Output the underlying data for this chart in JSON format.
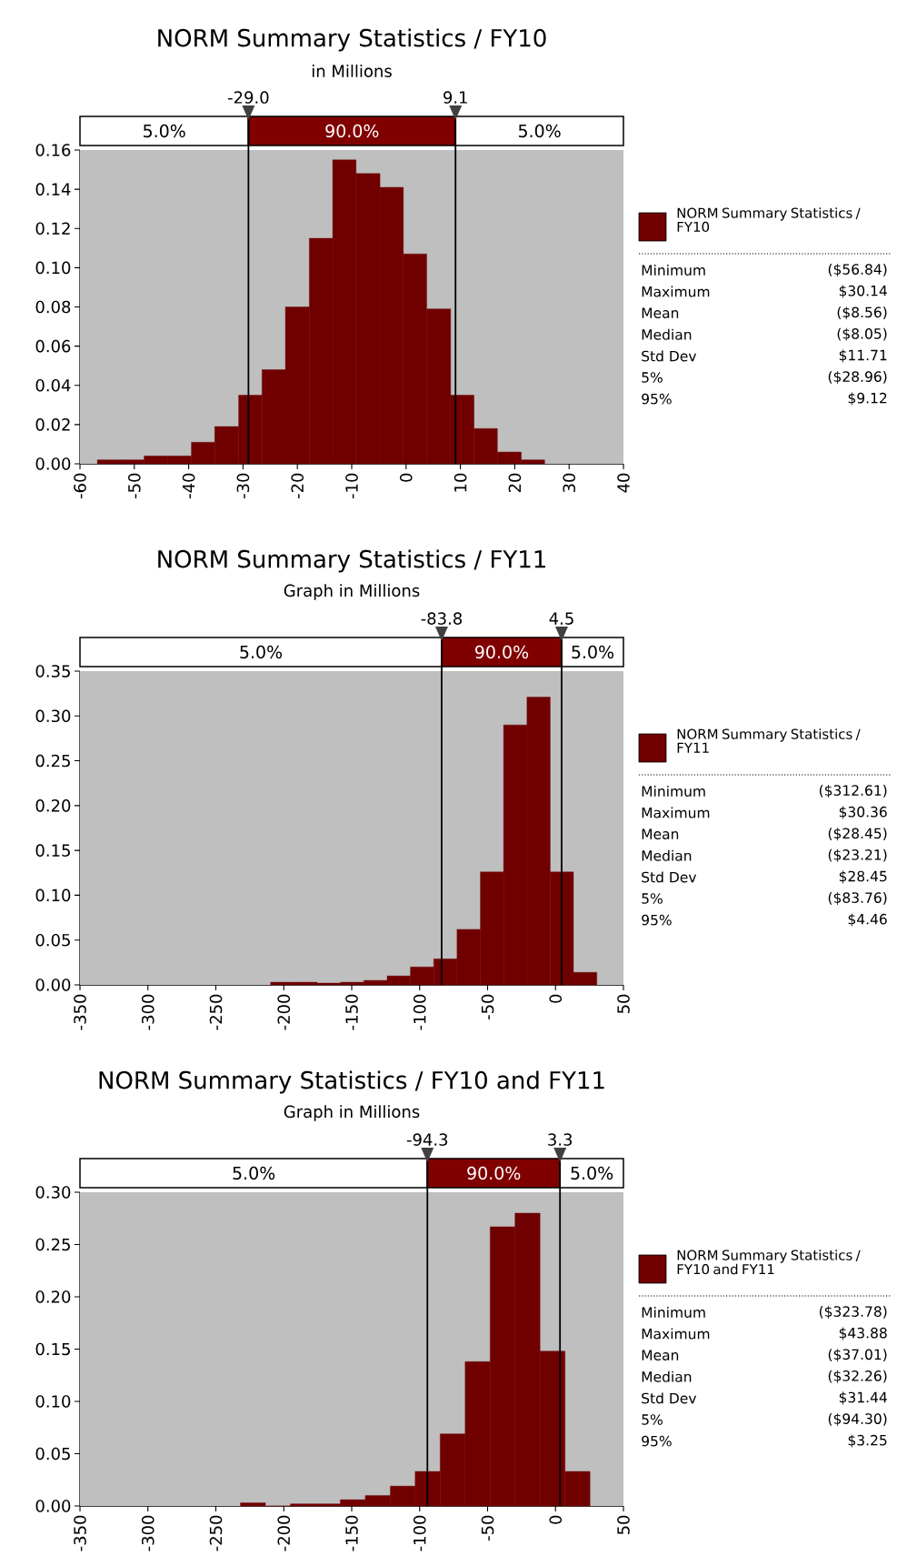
{
  "chart_data": [
    {
      "type": "histogram",
      "title": "NORM Summary Statistics / FY10",
      "subtitle": "in Millions",
      "bins": [
        -56.8,
        -52.5,
        -48.2,
        -43.8,
        -39.5,
        -35.2,
        -30.8,
        -26.5,
        -22.2,
        -17.8,
        -13.5,
        -9.2,
        -4.8,
        -0.5,
        3.8,
        8.2,
        12.5,
        16.8,
        21.2,
        25.5
      ],
      "series": [
        {
          "name": "NORM Summary Statistics / FY10",
          "color": "#700000",
          "values": [
            0.002,
            0.002,
            0.004,
            0.004,
            0.011,
            0.019,
            0.035,
            0.048,
            0.08,
            0.115,
            0.155,
            0.148,
            0.141,
            0.107,
            0.079,
            0.035,
            0.018,
            0.006,
            0.002
          ]
        }
      ],
      "xlim": [
        -60,
        40
      ],
      "xticks": [
        -60,
        -50,
        -40,
        -30,
        -20,
        -10,
        0,
        10,
        20,
        30,
        40
      ],
      "ylim": [
        0,
        0.16
      ],
      "yticks": [
        {
          "value": 0,
          "label": "0.00"
        },
        {
          "value": 0.02,
          "label": "0.02"
        },
        {
          "value": 0.04,
          "label": "0.04"
        },
        {
          "value": 0.06,
          "label": "0.06"
        },
        {
          "value": 0.08,
          "label": "0.08"
        },
        {
          "value": 0.1,
          "label": "0.10"
        },
        {
          "value": 0.12,
          "label": "0.12"
        },
        {
          "value": 0.14,
          "label": "0.14"
        },
        {
          "value": 0.16,
          "label": "0.16"
        }
      ],
      "ref_lines": [
        {
          "axis": "x",
          "value": -29.0,
          "label": "-29.0",
          "color": "#000000"
        },
        {
          "axis": "x",
          "value": 9.1,
          "label": "9.1",
          "color": "#000000"
        }
      ],
      "legend": "right",
      "annotations": [
        "5.0%",
        "90.0%",
        "5.0%",
        "Minimum",
        "($56.84)",
        "Maximum",
        "$30.14",
        "Mean",
        "($8.56)",
        "Median",
        "($8.05)",
        "Std Dev",
        "$11.71",
        "5%",
        "($28.96)",
        "95%",
        "$9.12"
      ]
    },
    {
      "type": "histogram",
      "title": "NORM Summary Statistics / FY11",
      "subtitle": "Graph in Millions",
      "bins": [
        -209.7,
        -192.5,
        -175.4,
        -158.2,
        -141.1,
        -123.9,
        -106.8,
        -89.6,
        -72.5,
        -55.3,
        -38.2,
        -21.0,
        -3.9,
        13.2,
        30.4
      ],
      "series": [
        {
          "name": "NORM Summary Statistics / FY11",
          "color": "#700000",
          "values": [
            0.003,
            0.003,
            0.002,
            0.003,
            0.005,
            0.01,
            0.02,
            0.029,
            0.062,
            0.126,
            0.29,
            0.321,
            0.126,
            0.014
          ]
        }
      ],
      "xlim": [
        -350,
        50
      ],
      "xticks": [
        -350,
        -300,
        -250,
        -200,
        -150,
        -100,
        -50,
        0,
        50
      ],
      "ylim": [
        0,
        0.35
      ],
      "yticks": [
        {
          "value": 0,
          "label": "0.00"
        },
        {
          "value": 0.05,
          "label": "0.05"
        },
        {
          "value": 0.1,
          "label": "0.10"
        },
        {
          "value": 0.15,
          "label": "0.15"
        },
        {
          "value": 0.2,
          "label": "0.20"
        },
        {
          "value": 0.25,
          "label": "0.25"
        },
        {
          "value": 0.3,
          "label": "0.30"
        },
        {
          "value": 0.35,
          "label": "0.35"
        }
      ],
      "ref_lines": [
        {
          "axis": "x",
          "value": -83.8,
          "label": "-83.8",
          "color": "#000000"
        },
        {
          "axis": "x",
          "value": 4.5,
          "label": "4.5",
          "color": "#000000"
        }
      ],
      "legend": "right",
      "annotations": [
        "5.0%",
        "90.0%",
        "5.0%",
        "Minimum",
        "($312.61)",
        "Maximum",
        "$30.36",
        "Mean",
        "($28.45)",
        "Median",
        "($23.21)",
        "Std Dev",
        "$28.45",
        "5%",
        "($83.76)",
        "95%",
        "$4.46"
      ]
    },
    {
      "type": "histogram",
      "title": "NORM Summary Statistics / FY10 and FY11",
      "subtitle": "Graph in Millions",
      "bins": [
        -231.9,
        -213.5,
        -195.1,
        -176.8,
        -158.4,
        -140.0,
        -121.6,
        -103.3,
        -84.9,
        -66.5,
        -48.1,
        -29.8,
        -11.4,
        7.0,
        25.4
      ],
      "series": [
        {
          "name": "NORM Summary Statistics / FY10 and FY11",
          "color": "#700000",
          "values": [
            0.003,
            0,
            0.002,
            0.002,
            0.006,
            0.01,
            0.019,
            0.033,
            0.069,
            0.138,
            0.267,
            0.28,
            0.148,
            0.033
          ]
        }
      ],
      "xlim": [
        -350,
        50
      ],
      "xticks": [
        -350,
        -300,
        -250,
        -200,
        -150,
        -100,
        -50,
        0,
        50
      ],
      "ylim": [
        0,
        0.3
      ],
      "yticks": [
        {
          "value": 0,
          "label": "0.00"
        },
        {
          "value": 0.05,
          "label": "0.05"
        },
        {
          "value": 0.1,
          "label": "0.10"
        },
        {
          "value": 0.15,
          "label": "0.15"
        },
        {
          "value": 0.2,
          "label": "0.20"
        },
        {
          "value": 0.25,
          "label": "0.25"
        },
        {
          "value": 0.3,
          "label": "0.30"
        }
      ],
      "ref_lines": [
        {
          "axis": "x",
          "value": -94.3,
          "label": "-94.3",
          "color": "#000000"
        },
        {
          "axis": "x",
          "value": 3.3,
          "label": "3.3",
          "color": "#000000"
        }
      ],
      "legend": "right",
      "annotations": [
        "5.0%",
        "90.0%",
        "5.0%",
        "Minimum",
        "($323.78)",
        "Maximum",
        "$43.88",
        "Mean",
        "($37.01)",
        "Median",
        "($32.26)",
        "Std Dev",
        "$31.44",
        "5%",
        "($94.30)",
        "95%",
        "$3.25"
      ]
    }
  ]
}
